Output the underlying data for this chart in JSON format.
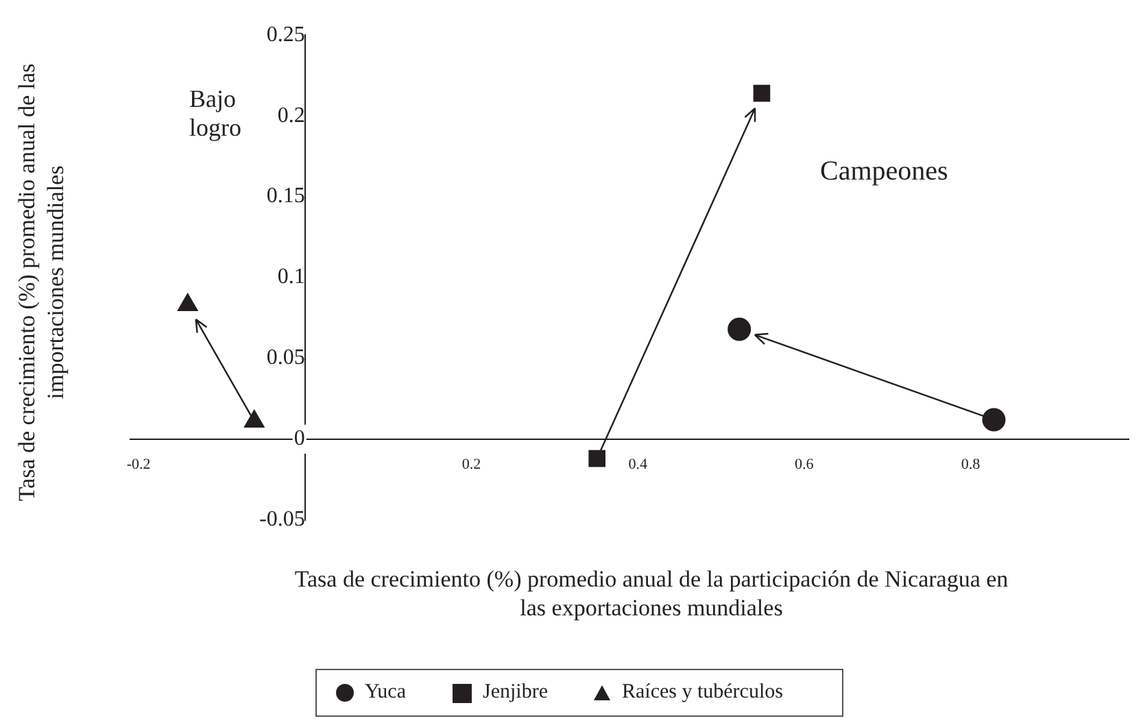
{
  "chart_data": {
    "type": "scatter",
    "xlabel": "Tasa de crecimiento (%) promedio anual de la participación de Nicaragua en las exportaciones mundiales",
    "ylabel": "Tasa de crecimiento  (%) promedio anual de las importaciones mundiales",
    "xlim": [
      -0.21,
      0.99
    ],
    "xticks": [
      -0.2,
      0.2,
      0.4,
      0.6,
      0.8
    ],
    "ylim": [
      -0.05,
      0.25
    ],
    "yticks": [
      -0.05,
      0,
      0.05,
      0.1,
      0.15,
      0.2,
      0.25
    ],
    "grid": false,
    "legend": "bottom",
    "annotations": [
      "Bajo logro",
      "Campeones"
    ],
    "series": [
      {
        "name": "Yuca",
        "color": "#231f20",
        "marker": "circle",
        "x": [
          0.828,
          0.522
        ],
        "values": [
          0.012,
          0.068
        ]
      },
      {
        "name": "Jenjibre",
        "color": "#231f20",
        "marker": "square",
        "x": [
          0.351,
          0.549
        ],
        "values": [
          -0.012,
          0.214
        ]
      },
      {
        "name": "Raíces y tubérculos",
        "color": "#231f20",
        "marker": "triangle",
        "x": [
          -0.061,
          -0.141
        ],
        "values": [
          0.011,
          0.083
        ]
      }
    ]
  }
}
